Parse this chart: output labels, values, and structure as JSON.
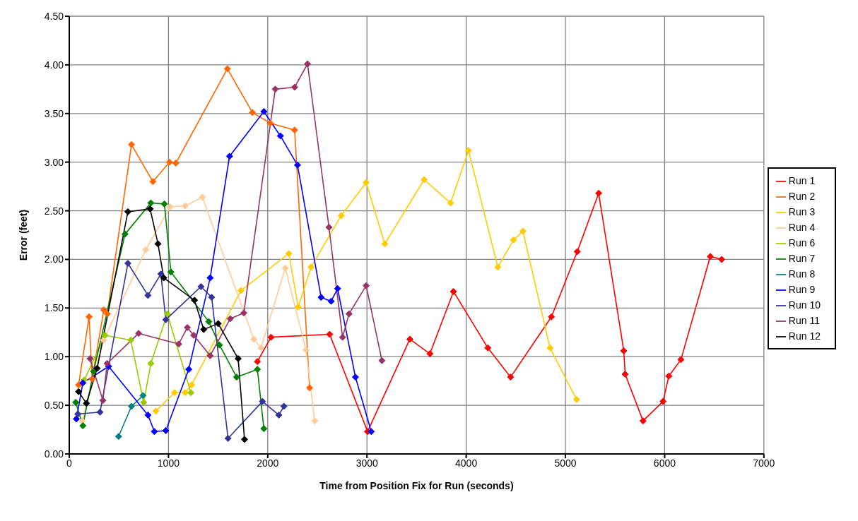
{
  "chart_data": {
    "type": "line",
    "xlabel": "Time from Position Fix for Run (seconds)",
    "ylabel": "Error (feet)",
    "xlim": [
      0,
      7000
    ],
    "xticks": [
      0,
      1000,
      2000,
      3000,
      4000,
      5000,
      6000,
      7000
    ],
    "ylim": [
      0,
      4.5
    ],
    "yticks": [
      {
        "value": 0,
        "label": "0.00"
      },
      {
        "value": 0.5,
        "label": "0.50"
      },
      {
        "value": 1,
        "label": "1.00"
      },
      {
        "value": 1.5,
        "label": "1.50"
      },
      {
        "value": 2,
        "label": "2.00"
      },
      {
        "value": 2.5,
        "label": "2.50"
      },
      {
        "value": 3,
        "label": "3.00"
      },
      {
        "value": 3.5,
        "label": "3.50"
      },
      {
        "value": 4,
        "label": "4.00"
      },
      {
        "value": 4.5,
        "label": "4.50"
      }
    ],
    "grid": true,
    "legend": "right",
    "marker": "diamond",
    "line_style": "solid",
    "series": [
      {
        "name": "Run 1",
        "color": "#ff0000",
        "x": [
          1896,
          2033,
          2624,
          3006,
          3432,
          3634,
          3872,
          4218,
          4448,
          4859,
          5119,
          5335,
          5588,
          5602,
          5782,
          5984,
          6042,
          6164,
          6460,
          6575
        ],
        "values": [
          0.95,
          1.2,
          1.23,
          0.23,
          1.18,
          1.03,
          1.67,
          1.09,
          0.79,
          1.41,
          2.08,
          2.68,
          1.06,
          0.82,
          0.34,
          0.54,
          0.8,
          0.97,
          2.03,
          2.0
        ]
      },
      {
        "name": "Run 2",
        "color": "#ff6600",
        "x": [
          94,
          200,
          230,
          348,
          383,
          627,
          843,
          1010,
          1074,
          1593,
          1846,
          2026,
          2271,
          2422
        ],
        "values": [
          0.71,
          1.41,
          0.77,
          1.48,
          1.44,
          3.18,
          2.8,
          3.0,
          2.99,
          3.96,
          3.51,
          3.4,
          3.33,
          0.68
        ]
      },
      {
        "name": "Run 3",
        "color": "#ffcc00",
        "x": [
          872,
          1060,
          1168,
          1233,
          1730,
          2213,
          2307,
          2437,
          2740,
          2992,
          3180,
          3576,
          3843,
          4023,
          4319,
          4477,
          4571,
          4845,
          5112
        ],
        "values": [
          0.44,
          0.63,
          0.63,
          0.71,
          1.68,
          2.06,
          1.51,
          1.92,
          2.45,
          2.79,
          2.16,
          2.82,
          2.58,
          3.12,
          1.92,
          2.2,
          2.29,
          1.09,
          0.56
        ]
      },
      {
        "name": "Run 4",
        "color": "#ffcc99",
        "x": [
          130,
          346,
          771,
          1017,
          1168,
          1341,
          1860,
          1932,
          2177,
          2386,
          2473
        ],
        "values": [
          0.34,
          1.17,
          2.1,
          2.54,
          2.55,
          2.64,
          1.18,
          1.09,
          1.91,
          1.07,
          0.34
        ]
      },
      {
        "name": "Run 6",
        "color": "#99cc00",
        "x": [
          151,
          361,
          620,
          750,
          822,
          988,
          1226
        ],
        "values": [
          0.76,
          1.22,
          1.17,
          0.53,
          0.93,
          1.44,
          0.63
        ]
      },
      {
        "name": "Run 7",
        "color": "#008000",
        "x": [
          65,
          137,
          245,
          562,
          822,
          959,
          1024,
          1406,
          1514,
          1687,
          1896,
          1961
        ],
        "values": [
          0.53,
          0.29,
          0.85,
          2.26,
          2.58,
          2.57,
          1.87,
          1.36,
          1.12,
          0.79,
          0.87,
          0.26
        ]
      },
      {
        "name": "Run 8",
        "color": "#008080",
        "x": [
          497,
          627,
          743
        ],
        "values": [
          0.18,
          0.49,
          0.6
        ]
      },
      {
        "name": "Run 9",
        "color": "#0000ff",
        "x": [
          72,
          137,
          397,
          793,
          858,
          973,
          1204,
          1420,
          1615,
          1961,
          2127,
          2300,
          2538,
          2639,
          2704,
          2884,
          3043
        ],
        "values": [
          0.36,
          0.73,
          0.9,
          0.4,
          0.23,
          0.24,
          0.87,
          1.81,
          3.06,
          3.52,
          3.27,
          2.97,
          1.61,
          1.57,
          1.7,
          0.79,
          0.23
        ]
      },
      {
        "name": "Run 10",
        "color": "#333399",
        "x": [
          87,
          310,
          591,
          793,
          923,
          973,
          1327,
          1435,
          1600,
          1947,
          2112,
          2163
        ],
        "values": [
          0.41,
          0.43,
          1.96,
          1.63,
          1.85,
          1.38,
          1.72,
          1.61,
          0.16,
          0.54,
          0.4,
          0.49
        ]
      },
      {
        "name": "Run 11",
        "color": "#993366",
        "x": [
          209,
          339,
          382,
          699,
          1103,
          1190,
          1254,
          1420,
          1622,
          1759,
          2076,
          2271,
          2401,
          2617,
          2754,
          2819,
          2992,
          3151
        ],
        "values": [
          0.98,
          0.55,
          0.93,
          1.24,
          1.13,
          1.3,
          1.22,
          1.01,
          1.39,
          1.45,
          3.75,
          3.77,
          4.01,
          2.33,
          1.2,
          1.44,
          1.73,
          0.96
        ]
      },
      {
        "name": "Run 12",
        "color": "#000000",
        "x": [
          94,
          173,
          281,
          591,
          815,
          894,
          952,
          1262,
          1355,
          1500,
          1702,
          1766
        ],
        "values": [
          0.64,
          0.52,
          0.88,
          2.49,
          2.52,
          2.16,
          1.81,
          1.58,
          1.28,
          1.34,
          0.98,
          0.15
        ]
      }
    ]
  }
}
